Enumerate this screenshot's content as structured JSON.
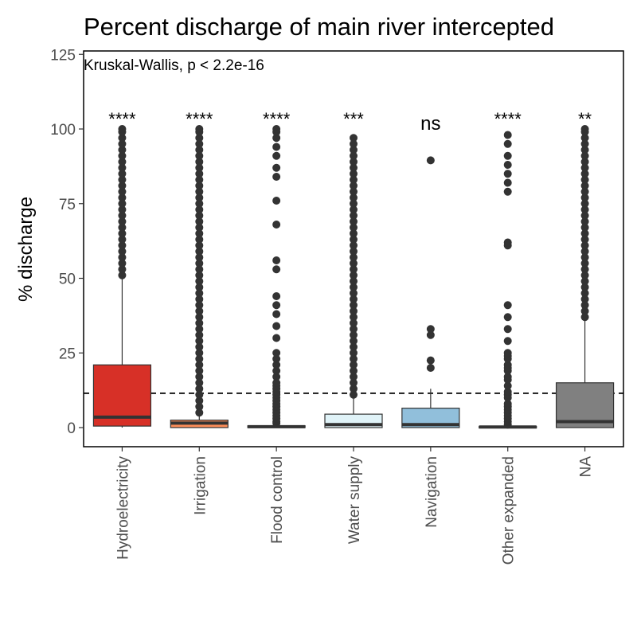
{
  "chart_data": {
    "type": "boxplot",
    "title": "Percent discharge of main river intercepted",
    "ylabel": "% discharge",
    "xlabel": "",
    "ylim": [
      -6,
      126
    ],
    "yticks": [
      0,
      25,
      50,
      75,
      100,
      125
    ],
    "ytick_labels": [
      "0",
      "25",
      "50",
      "75",
      "100",
      "125"
    ],
    "grid": false,
    "legend": "none",
    "reference_line": {
      "y": 11.5,
      "style": "dashed"
    },
    "annotation": "Kruskal-Wallis, p < 2.2e-16",
    "categories": [
      "Hydroelectricity",
      "Irrigation",
      "Flood control",
      "Water supply",
      "Navigation",
      "Other expanded",
      "NA"
    ],
    "boxes": [
      {
        "category": "Hydroelectricity",
        "color": "#d73027",
        "q1": 0.5,
        "median": 3.5,
        "q3": 21,
        "whisker_low": 0,
        "whisker_high": 51,
        "significance": "****",
        "outliers": [
          51,
          53,
          55,
          57,
          59,
          61,
          63,
          65,
          67,
          69,
          71,
          73,
          75,
          77,
          79,
          81,
          83,
          85,
          87,
          89,
          91,
          93,
          95,
          97,
          99,
          100
        ]
      },
      {
        "category": "Irrigation",
        "color": "#fc8d59",
        "q1": 0,
        "median": 1.5,
        "q3": 2.5,
        "whisker_low": 0,
        "whisker_high": 5,
        "significance": "****",
        "outliers": [
          5,
          7,
          9,
          11,
          13,
          15,
          17,
          19,
          21,
          23,
          25,
          27,
          29,
          31,
          33,
          35,
          37,
          39,
          41,
          43,
          45,
          47,
          49,
          51,
          53,
          55,
          57,
          59,
          61,
          63,
          65,
          67,
          69,
          71,
          73,
          75,
          77,
          79,
          81,
          83,
          85,
          87,
          89,
          91,
          93,
          95,
          97,
          99,
          100
        ]
      },
      {
        "category": "Flood control",
        "color": "#fee090",
        "q1": 0,
        "median": 0.3,
        "q3": 0.6,
        "whisker_low": 0,
        "whisker_high": 1,
        "significance": "****",
        "outliers": [
          1.5,
          2,
          3,
          4,
          5,
          6,
          7,
          8,
          9,
          10,
          11,
          12,
          13,
          14,
          15,
          17,
          19,
          21,
          23,
          25,
          30,
          34,
          38,
          41,
          44,
          53,
          56,
          68,
          76,
          84,
          87,
          91,
          94,
          97,
          99,
          100
        ]
      },
      {
        "category": "Water supply",
        "color": "#e0f3f8",
        "q1": 0,
        "median": 1,
        "q3": 4.5,
        "whisker_low": 0,
        "whisker_high": 11,
        "significance": "***",
        "outliers": [
          11,
          13,
          15,
          17,
          19,
          21,
          23,
          25,
          27,
          29,
          31,
          33,
          35,
          37,
          39,
          41,
          43,
          45,
          47,
          49,
          51,
          53,
          55,
          57,
          59,
          61,
          63,
          65,
          67,
          69,
          71,
          73,
          75,
          77,
          79,
          81,
          83,
          85,
          87,
          89,
          91,
          93,
          95,
          97
        ]
      },
      {
        "category": "Navigation",
        "color": "#91bfdb",
        "q1": 0,
        "median": 1,
        "q3": 6.5,
        "whisker_low": 0,
        "whisker_high": 13,
        "significance": "ns",
        "outliers": [
          20,
          22.5,
          31,
          33,
          89.5
        ]
      },
      {
        "category": "Other expanded",
        "color": "#4575b4",
        "q1": 0,
        "median": 0.2,
        "q3": 0.4,
        "whisker_low": 0,
        "whisker_high": 0.8,
        "significance": "****",
        "outliers": [
          1,
          2,
          3,
          4,
          5,
          6,
          7,
          8,
          10,
          11,
          12,
          14,
          16,
          17,
          19,
          20,
          21,
          23,
          24,
          25,
          29,
          33,
          37,
          41,
          61,
          62,
          79,
          82,
          85,
          88,
          91,
          95,
          98
        ]
      },
      {
        "category": "NA",
        "color": "#808080",
        "q1": 0,
        "median": 2,
        "q3": 15,
        "whisker_low": 0,
        "whisker_high": 37,
        "significance": "**",
        "outliers": [
          37,
          39,
          41,
          43,
          45,
          47,
          49,
          51,
          53,
          55,
          57,
          59,
          61,
          63,
          65,
          67,
          69,
          71,
          73,
          75,
          77,
          79,
          81,
          83,
          85,
          87,
          89,
          91,
          93,
          95,
          97,
          99,
          100
        ]
      }
    ]
  }
}
